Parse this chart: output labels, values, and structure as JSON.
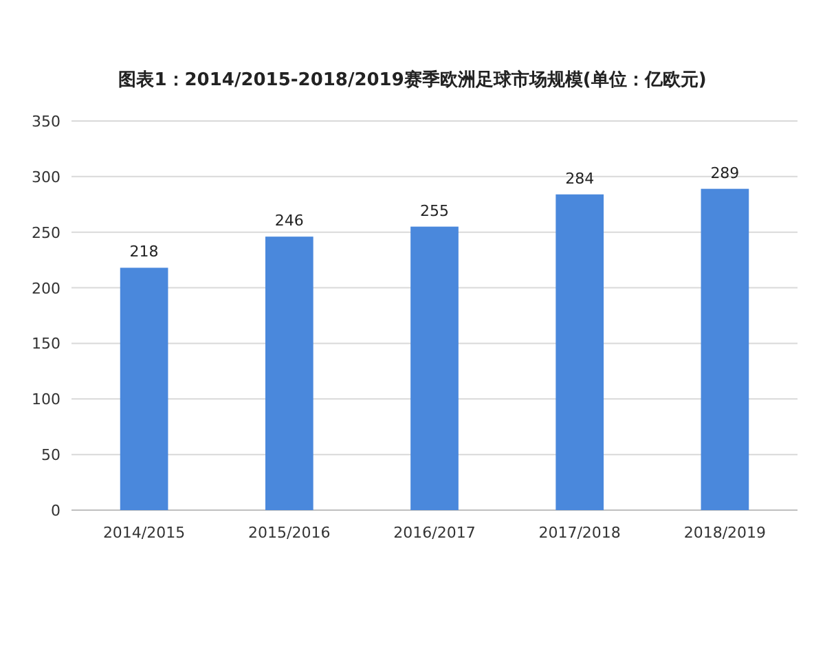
{
  "chart_data": {
    "type": "bar",
    "title": "图表1：2014/2015-2018/2019赛季欧洲足球市场规模(单位：亿欧元)",
    "categories": [
      "2014/2015",
      "2015/2016",
      "2016/2017",
      "2017/2018",
      "2018/2019"
    ],
    "values": [
      218,
      246,
      255,
      284,
      289
    ],
    "color": "#4a88dc",
    "ylim": [
      0,
      350
    ],
    "yticks": [
      0,
      50,
      100,
      150,
      200,
      250,
      300,
      350
    ],
    "grid": "y",
    "data_labels": true
  }
}
